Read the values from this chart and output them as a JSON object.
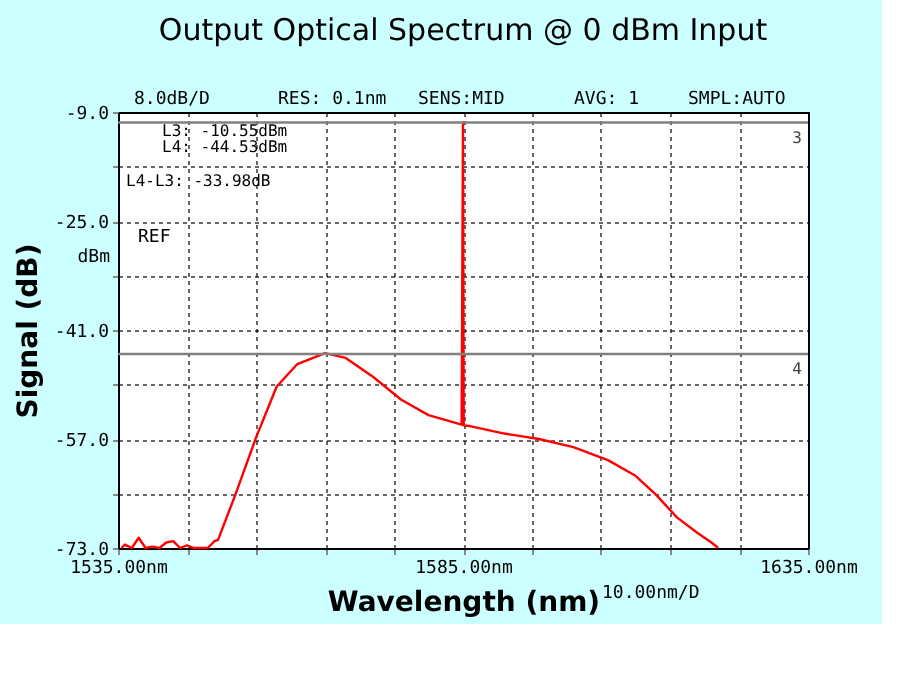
{
  "chart_data": {
    "type": "line",
    "title": "Output Optical Spectrum @ 0 dBm Input",
    "xlabel": "Wavelength (nm)",
    "ylabel": "Signal (dB)",
    "x": [
      1535.5,
      1536,
      1537,
      1538,
      1539,
      1540,
      1541,
      1542,
      1543,
      1544,
      1545,
      1546,
      1547,
      1548,
      1549,
      1549.5,
      1552,
      1555,
      1558,
      1561,
      1565,
      1568,
      1572,
      1576,
      1580,
      1584.8,
      1585,
      1585.1,
      1586,
      1591,
      1596,
      1601,
      1606,
      1610,
      1613,
      1616,
      1619,
      1621,
      1622
    ],
    "series": [
      {
        "color": "#ff0000",
        "values": [
          -73,
          -72.5,
          -73,
          -71.5,
          -73,
          -72.8,
          -73,
          -72.2,
          -72,
          -73,
          -72.6,
          -73,
          -73,
          -73,
          -72,
          -71.8,
          -65.2,
          -56.8,
          -49.3,
          -46,
          -44.4,
          -45.1,
          -47.9,
          -51.2,
          -53.5,
          -54.9,
          -10.55,
          -55,
          -55.1,
          -56.2,
          -57,
          -58.2,
          -60.1,
          -62.4,
          -65.2,
          -68.5,
          -70.8,
          -72.2,
          -73
        ]
      }
    ],
    "xlim": [
      1535,
      1635
    ],
    "xticks": [
      {
        "value": 1535,
        "label": "1535.00nm"
      },
      {
        "value": 1545,
        "label": null
      },
      {
        "value": 1555,
        "label": null
      },
      {
        "value": 1565,
        "label": null
      },
      {
        "value": 1575,
        "label": null
      },
      {
        "value": 1585,
        "label": "1585.00nm"
      },
      {
        "value": 1595,
        "label": null
      },
      {
        "value": 1605,
        "label": null
      },
      {
        "value": 1615,
        "label": null
      },
      {
        "value": 1625,
        "label": null
      },
      {
        "value": 1635,
        "label": "1635.00nm"
      }
    ],
    "ylim": [
      -73,
      -9
    ],
    "yticks": [
      {
        "value": -73,
        "label": "-73.0"
      },
      {
        "value": -65,
        "label": null
      },
      {
        "value": -57,
        "label": "-57.0"
      },
      {
        "value": -49,
        "label": null
      },
      {
        "value": -41,
        "label": "-41.0"
      },
      {
        "value": -33,
        "label": null
      },
      {
        "value": -25,
        "label": "-25.0"
      },
      {
        "value": -17,
        "label": null
      },
      {
        "value": -9,
        "label": "-9.0"
      }
    ],
    "grid": true,
    "line_style": "solid",
    "marker": "none",
    "ref_lines": [
      {
        "axis": "y",
        "value": -10.55,
        "color": "#808080"
      },
      {
        "axis": "y",
        "value": -44.53,
        "color": "#808080"
      }
    ],
    "annotations": [
      {
        "text": "3",
        "x": 1635,
        "y": -10.55
      },
      {
        "text": "4",
        "x": 1635,
        "y": -44.53
      },
      "8.0dB/D",
      "RES: 0.1nm",
      "SENS:MID",
      "AVG:   1",
      "SMPL:AUTO",
      "REF",
      "dBm",
      "L3: -10.55dBm",
      "L4: -44.53dBm",
      "L4-L3: -33.98dB",
      "10.00nm/D"
    ]
  }
}
